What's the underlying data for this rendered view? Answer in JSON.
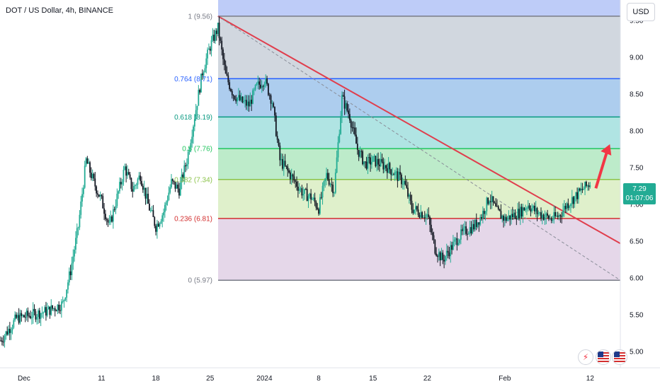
{
  "header": {
    "title": "DOT / US Dollar, 4h, BINANCE"
  },
  "currency_button": "USD",
  "last_price": {
    "price": "7.29",
    "countdown": "01:07:06"
  },
  "icons": [
    "lightning-icon",
    "us-flag-icon",
    "us-flag-icon"
  ],
  "colors": {
    "up": "#22ab94",
    "down": "#131722",
    "trendline": "#e03e4d",
    "arrow": "#f23645"
  },
  "chart_data": {
    "type": "candlestick",
    "title": "DOT / US Dollar, 4h, BINANCE",
    "ylim": [
      4.78,
      9.78
    ],
    "y_ticks": [
      "9.50",
      "9.00",
      "8.50",
      "8.00",
      "7.50",
      "7.00",
      "6.50",
      "6.00",
      "5.50",
      "5.00"
    ],
    "x_ticks": [
      {
        "label": "Dec",
        "date": "2023-12-01"
      },
      {
        "label": "11",
        "date": "2023-12-11"
      },
      {
        "label": "18",
        "date": "2023-12-18"
      },
      {
        "label": "25",
        "date": "2023-12-25"
      },
      {
        "label": "2024",
        "date": "2024-01-01"
      },
      {
        "label": "8",
        "date": "2024-01-08"
      },
      {
        "label": "15",
        "date": "2024-01-15"
      },
      {
        "label": "22",
        "date": "2024-01-22"
      },
      {
        "label": "Feb",
        "date": "2024-02-01"
      },
      {
        "label": "12",
        "date": "2024-02-12"
      }
    ],
    "fib_levels": [
      {
        "label": "1 (9.56)",
        "value": 9.56,
        "color": "#787b86"
      },
      {
        "label": "0.764 (8.71)",
        "value": 8.71,
        "color": "#2962ff"
      },
      {
        "label": "0.618 (8.19)",
        "value": 8.19,
        "color": "#089981"
      },
      {
        "label": "0.5 (7.76)",
        "value": 7.76,
        "color": "#22c55e"
      },
      {
        "label": "0.382 (7.34)",
        "value": 7.34,
        "color": "#8bc34a"
      },
      {
        "label": "0.236 (6.81)",
        "value": 6.81,
        "color": "#d32f2f"
      },
      {
        "label": "0 (5.97)",
        "value": 5.97,
        "color": "#787b86"
      }
    ],
    "fib_zones": [
      {
        "from": 9.56,
        "to": 9.78,
        "color": "#6f8df0"
      },
      {
        "from": 8.71,
        "to": 9.56,
        "color": "#9aa6b8"
      },
      {
        "from": 8.19,
        "to": 8.71,
        "color": "#4a90d9"
      },
      {
        "from": 7.76,
        "to": 8.19,
        "color": "#4fc3c0"
      },
      {
        "from": 7.34,
        "to": 7.76,
        "color": "#6dd38a"
      },
      {
        "from": 6.81,
        "to": 7.34,
        "color": "#b8dd8c"
      },
      {
        "from": 5.97,
        "to": 6.81,
        "color": "#c6a7cf"
      }
    ],
    "price_series": [
      [
        "2023-11-28",
        5.15
      ],
      [
        "2023-11-30",
        5.45
      ],
      [
        "2023-12-02",
        5.5
      ],
      [
        "2023-12-04",
        5.55
      ],
      [
        "2023-12-06",
        5.65
      ],
      [
        "2023-12-07",
        6.1
      ],
      [
        "2023-12-08",
        6.7
      ],
      [
        "2023-12-09",
        7.6
      ],
      [
        "2023-12-10",
        7.3
      ],
      [
        "2023-12-11",
        7.05
      ],
      [
        "2023-12-12",
        6.7
      ],
      [
        "2023-12-13",
        7.1
      ],
      [
        "2023-12-14",
        7.5
      ],
      [
        "2023-12-15",
        7.2
      ],
      [
        "2023-12-16",
        7.4
      ],
      [
        "2023-12-17",
        7.0
      ],
      [
        "2023-12-18",
        6.7
      ],
      [
        "2023-12-19",
        6.9
      ],
      [
        "2023-12-20",
        7.3
      ],
      [
        "2023-12-21",
        7.2
      ],
      [
        "2023-12-22",
        7.6
      ],
      [
        "2023-12-23",
        8.2
      ],
      [
        "2023-12-24",
        8.8
      ],
      [
        "2023-12-25",
        9.15
      ],
      [
        "2023-12-26",
        9.4
      ],
      [
        "2023-12-27",
        8.75
      ],
      [
        "2023-12-28",
        8.5
      ],
      [
        "2023-12-29",
        8.4
      ],
      [
        "2023-12-30",
        8.35
      ],
      [
        "2023-12-31",
        8.6
      ],
      [
        "2024-01-01",
        8.7
      ],
      [
        "2024-01-02",
        8.4
      ],
      [
        "2024-01-03",
        7.6
      ],
      [
        "2024-01-04",
        7.45
      ],
      [
        "2024-01-05",
        7.3
      ],
      [
        "2024-01-06",
        7.15
      ],
      [
        "2024-01-07",
        7.1
      ],
      [
        "2024-01-08",
        6.95
      ],
      [
        "2024-01-09",
        7.4
      ],
      [
        "2024-01-10",
        7.2
      ],
      [
        "2024-01-11",
        8.45
      ],
      [
        "2024-01-12",
        8.2
      ],
      [
        "2024-01-13",
        7.75
      ],
      [
        "2024-01-14",
        7.55
      ],
      [
        "2024-01-15",
        7.6
      ],
      [
        "2024-01-16",
        7.55
      ],
      [
        "2024-01-17",
        7.5
      ],
      [
        "2024-01-18",
        7.4
      ],
      [
        "2024-01-19",
        7.3
      ],
      [
        "2024-01-20",
        6.95
      ],
      [
        "2024-01-21",
        6.9
      ],
      [
        "2024-01-22",
        6.85
      ],
      [
        "2024-01-23",
        6.4
      ],
      [
        "2024-01-24",
        6.25
      ],
      [
        "2024-01-25",
        6.4
      ],
      [
        "2024-01-26",
        6.55
      ],
      [
        "2024-01-27",
        6.65
      ],
      [
        "2024-01-28",
        6.7
      ],
      [
        "2024-01-29",
        6.85
      ],
      [
        "2024-01-30",
        7.1
      ],
      [
        "2024-01-31",
        6.9
      ],
      [
        "2024-02-01",
        6.8
      ],
      [
        "2024-02-02",
        6.85
      ],
      [
        "2024-02-03",
        6.9
      ],
      [
        "2024-02-04",
        7.0
      ],
      [
        "2024-02-05",
        6.9
      ],
      [
        "2024-02-06",
        6.85
      ],
      [
        "2024-02-07",
        6.8
      ],
      [
        "2024-02-08",
        6.85
      ],
      [
        "2024-02-09",
        7.0
      ],
      [
        "2024-02-10",
        7.1
      ],
      [
        "2024-02-11",
        7.2
      ],
      [
        "2024-02-12",
        7.29
      ]
    ]
  }
}
